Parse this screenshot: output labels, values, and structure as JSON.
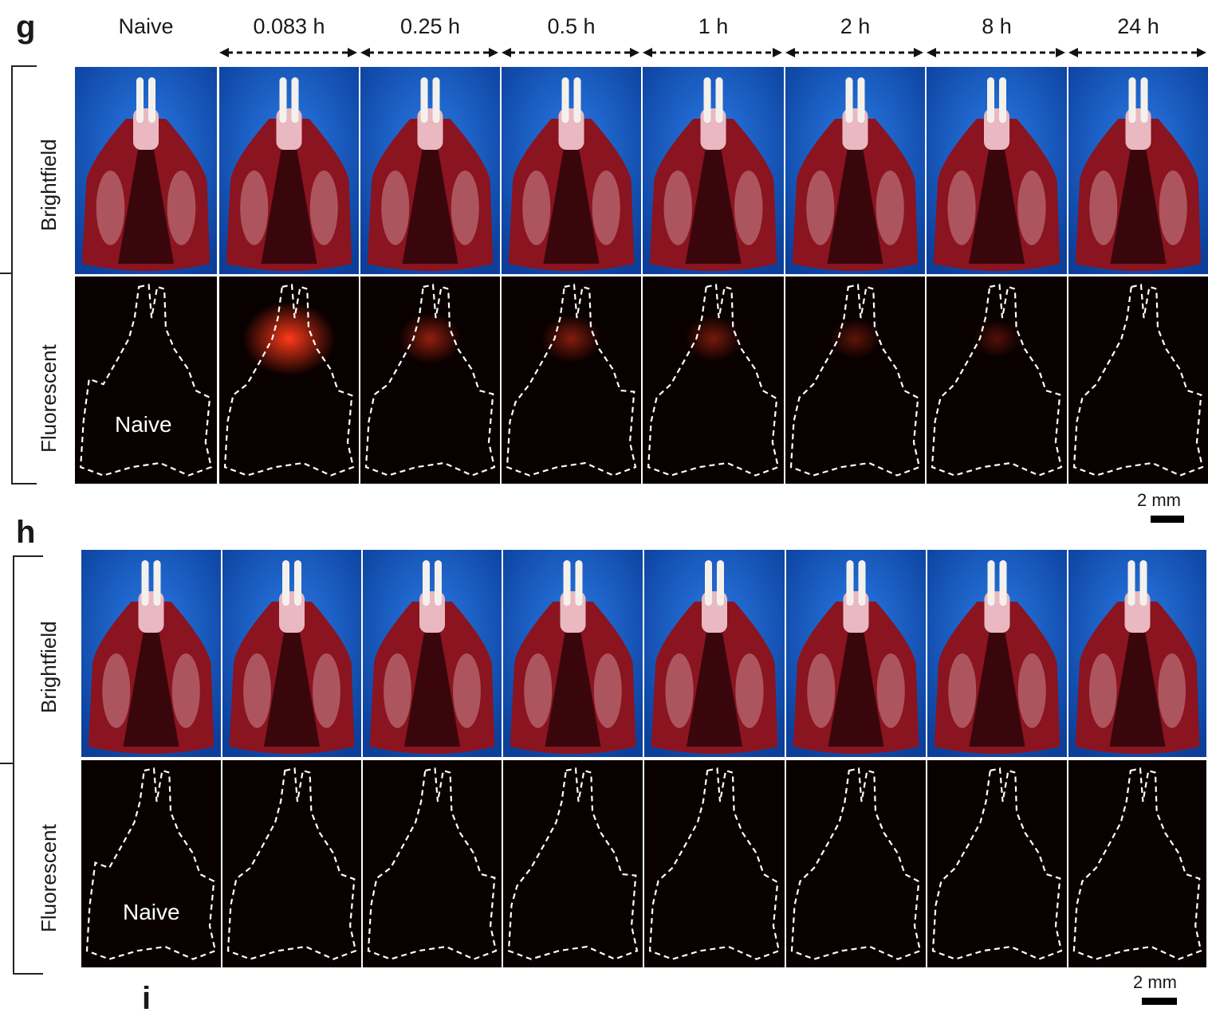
{
  "panel_g": {
    "letter": "g",
    "columns": [
      "Naive",
      "0.083 h",
      "0.25 h",
      "0.5 h",
      "1 h",
      "2 h",
      "8 h",
      "24 h"
    ],
    "row_labels": [
      "Brightfield",
      "Fluorescent"
    ],
    "naive_label": "Naive",
    "scale_bar": "2 mm",
    "fluorescence_intensity": [
      0,
      1.0,
      0.55,
      0.5,
      0.45,
      0.35,
      0.3,
      0
    ]
  },
  "panel_h": {
    "letter": "h",
    "row_labels": [
      "Brightfield",
      "Fluorescent"
    ],
    "naive_label": "Naive",
    "scale_bar": "2 mm"
  },
  "panel_i": {
    "letter": "i"
  },
  "colors": {
    "background_blue": "#1565c8",
    "tissue_red": "#8a1420",
    "fluorescent_bg": "#090000",
    "signal": "#ff3a1a"
  }
}
